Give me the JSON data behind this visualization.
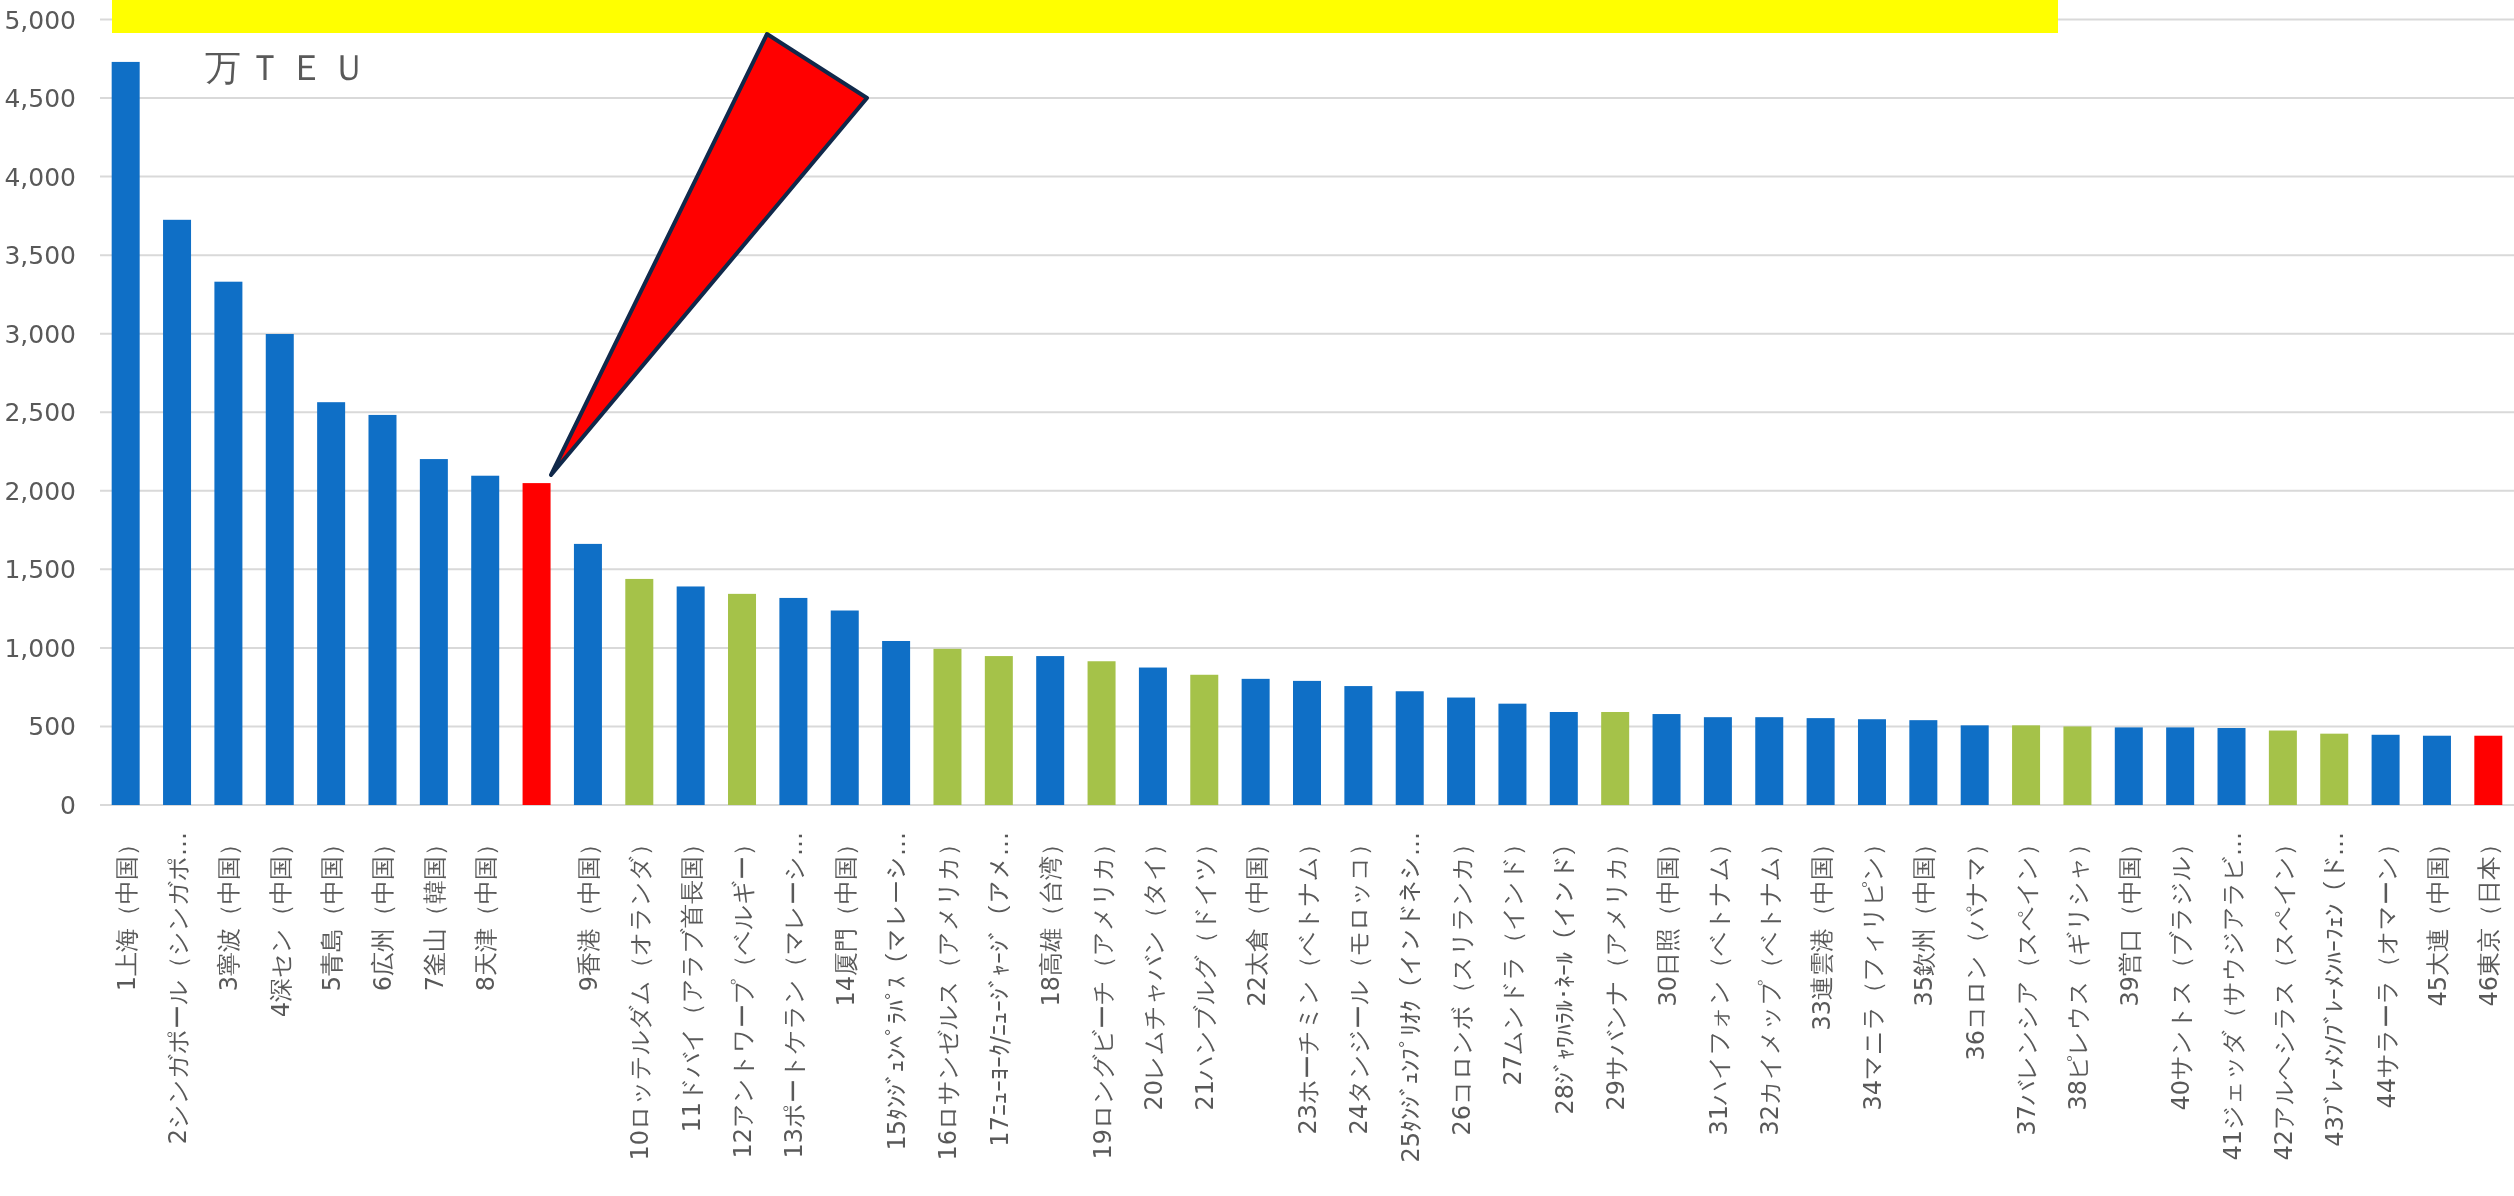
{
  "chart_data": {
    "type": "bar",
    "ylabel": "万ＴＥＵ",
    "categories": [
      "1上海（中国）",
      "2シンガポール（シンガポ…",
      "3寧波（中国）",
      "4深セン（中国）",
      "5青島（中国）",
      "6広州（中国）",
      "7釜山（韓国）",
      "8天津（中国）",
      null,
      "9香港（中国）",
      "10ロッテルダム（オランダ）",
      "11ドバイ（アラブ首長国）",
      "12アントワープ（ベルギー）",
      "13ポートケラン（マレーシ…",
      "14厦門（中国）",
      "15ﾀﾝｼﾞｭﾝﾍﾟﾗﾊﾟｽ（マレーシ…",
      "16ロサンゼルス（アメリカ）",
      "17ﾆｭｰﾖｰｸ/ﾆｭｰｼﾞｬｰｼﾞ（アメ…",
      "18高雄（台湾）",
      "19ロングビーチ（アメリカ）",
      "20レムチャバン（タイ）",
      "21ハンブルグ（ドイツ）",
      "22太倉（中国）",
      "23ホーチミン（ベトナム）",
      "24タンジール（モロッコ）",
      "25ﾀﾝｼﾞｭﾝﾌﾟﾘｵｸ（インドネシ…",
      "26コロンボ（スリランカ）",
      "27ムンドラ（インド）",
      "28ｼﾞｬﾜﾊﾗﾙ･ﾈｰﾙ（インド）",
      "29サバンナ（アメリカ）",
      "30日照（中国）",
      "31ハイフォン（ベトナム）",
      "32カイメップ（ベトナム）",
      "33連雲港（中国）",
      "34マニラ（フィリピン）",
      "35欽州（中国）",
      "36コロン（パナマ）",
      "37バレンシア（スペイン）",
      "38ピレウス（ギリシャ）",
      "39営口（中国）",
      "40サントス（ブラジル）",
      "41ジェッダ（サウジアラビ…",
      "42アルヘシラス（スペイン）",
      "43ﾌﾞﾚｰﾒﾝ/ﾌﾞﾚｰﾒﾝﾊｰﾌｪﾝ（ド…",
      "44サラーラ（オマーン）",
      "45大連（中国）",
      "46東京（日本）"
    ],
    "values": [
      4730,
      3725,
      3331,
      2998,
      2564,
      2483,
      2202,
      2096,
      2049,
      1662,
      1439,
      1391,
      1344,
      1318,
      1238,
      1044,
      994,
      948,
      948,
      915,
      875,
      829,
      803,
      790,
      757,
      724,
      684,
      645,
      592,
      592,
      579,
      559,
      559,
      553,
      546,
      540,
      507,
      507,
      500,
      494,
      494,
      490,
      474,
      454,
      447,
      441,
      441
    ],
    "colors": [
      "#0f6fc6",
      "#0f6fc6",
      "#0f6fc6",
      "#0f6fc6",
      "#0f6fc6",
      "#0f6fc6",
      "#0f6fc6",
      "#0f6fc6",
      "#ff0000",
      "#0f6fc6",
      "#a5c249",
      "#0f6fc6",
      "#a5c249",
      "#0f6fc6",
      "#0f6fc6",
      "#0f6fc6",
      "#a5c249",
      "#a5c249",
      "#0f6fc6",
      "#a5c249",
      "#0f6fc6",
      "#a5c249",
      "#0f6fc6",
      "#0f6fc6",
      "#0f6fc6",
      "#0f6fc6",
      "#0f6fc6",
      "#0f6fc6",
      "#0f6fc6",
      "#a5c249",
      "#0f6fc6",
      "#0f6fc6",
      "#0f6fc6",
      "#0f6fc6",
      "#0f6fc6",
      "#0f6fc6",
      "#0f6fc6",
      "#a5c249",
      "#a5c249",
      "#0f6fc6",
      "#0f6fc6",
      "#0f6fc6",
      "#a5c249",
      "#a5c249",
      "#0f6fc6",
      "#0f6fc6",
      "#ff0000"
    ],
    "ylim": [
      0,
      5000
    ],
    "yticks": [
      0,
      500,
      {
        "value": 1000,
        "label": "1,000"
      },
      {
        "value": 1500,
        "label": "1,500"
      },
      {
        "value": 2000,
        "label": "2,000"
      },
      {
        "value": 2500,
        "label": "2,500"
      },
      {
        "value": 3000,
        "label": "3,000"
      },
      {
        "value": 3500,
        "label": "3,500"
      },
      {
        "value": 4000,
        "label": "4,000"
      },
      {
        "value": 4500,
        "label": "4,500"
      },
      {
        "value": 5000,
        "label": "5,000"
      }
    ],
    "grid": "y"
  }
}
